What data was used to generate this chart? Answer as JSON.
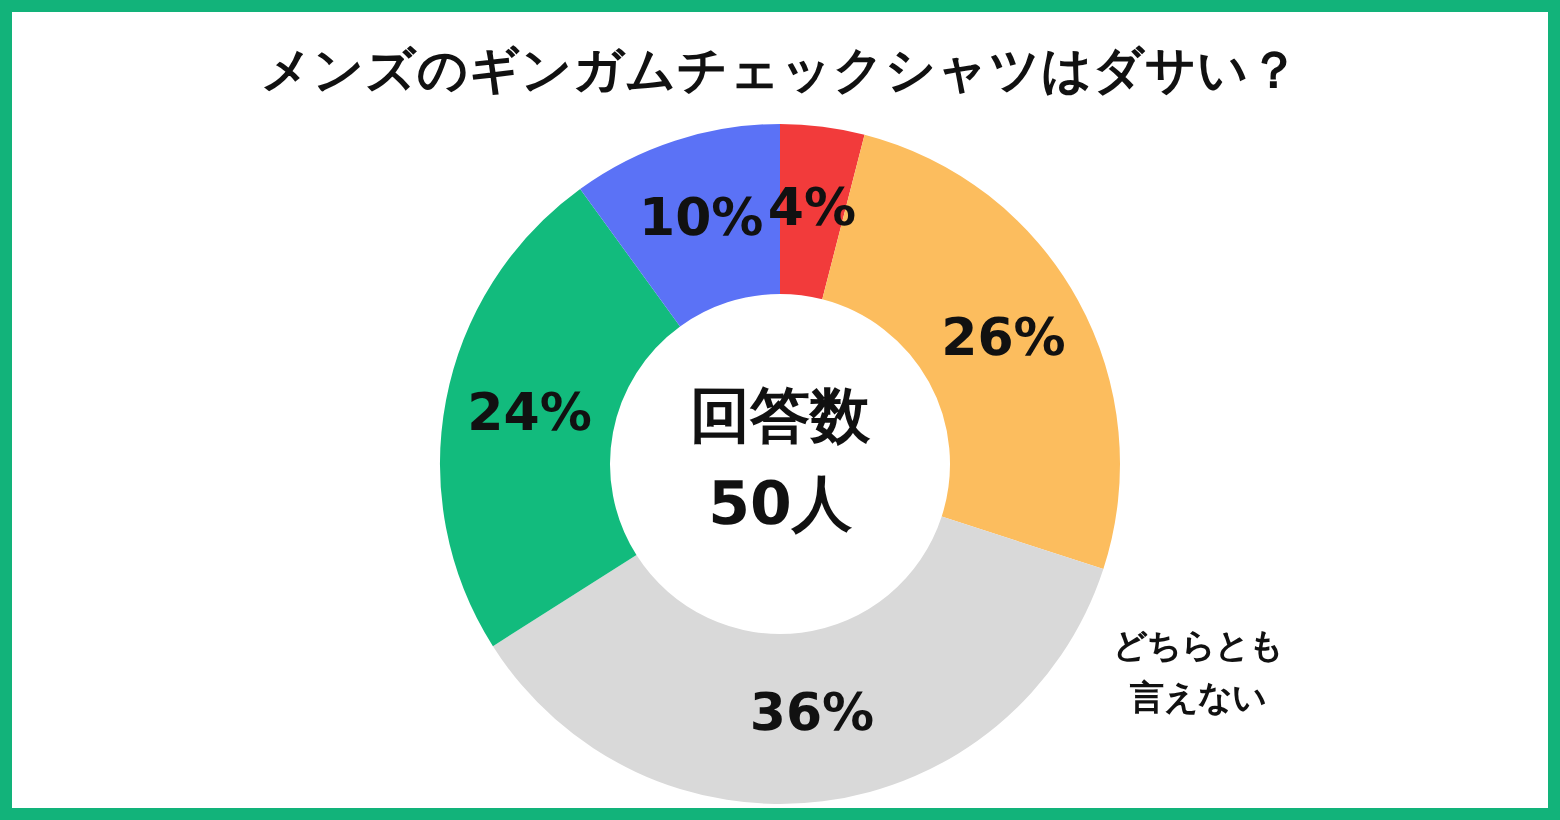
{
  "chart_data": {
    "type": "donut",
    "title": "メンズのギンガムチェックシャツはダサい？",
    "categories": [
      null,
      null,
      "どちらとも言えない",
      null,
      null
    ],
    "values": [
      4,
      26,
      36,
      24,
      10
    ],
    "colors": [
      "#f23b3b",
      "#fcbd5e",
      "#d9d9d9",
      "#12bb7d",
      "#5b72f6"
    ],
    "value_labels": [
      "4%",
      "26%",
      "36%",
      "24%",
      "10%"
    ],
    "annotations": [
      "回答数",
      "50人"
    ],
    "legend": false
  }
}
